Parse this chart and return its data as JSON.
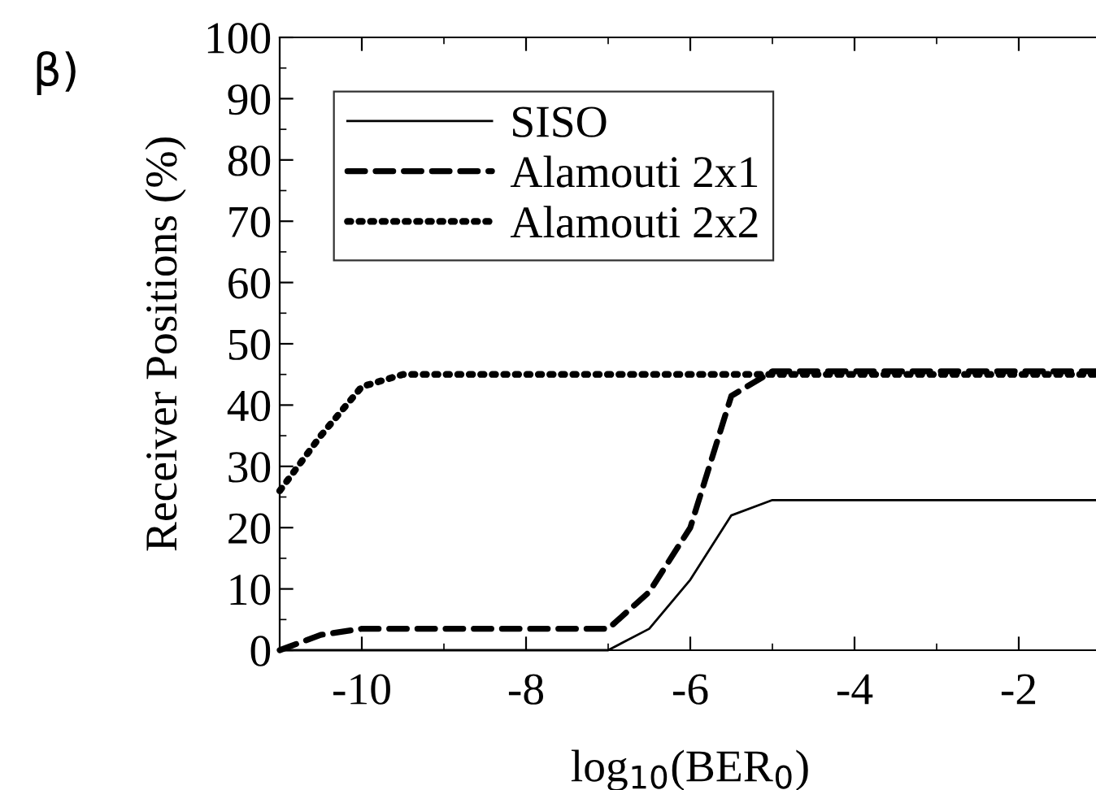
{
  "chart_data": {
    "type": "line",
    "xlabel": "log$_{10}$(BER$_{0}$)",
    "ylabel": "Receiver Positions (%)",
    "annotations": [
      "β)"
    ],
    "xlim": [
      -11,
      -1
    ],
    "xticks": [
      -10,
      -8,
      -6,
      -4,
      -2
    ],
    "ylim": [
      0,
      100
    ],
    "yticks": [
      0,
      10,
      20,
      30,
      40,
      50,
      60,
      70,
      80,
      90,
      100
    ],
    "grid": false,
    "legend": "top left",
    "series": [
      {
        "name": "SISO",
        "color": "#000000",
        "line_style": "solid",
        "x": [
          -11,
          -7,
          -6.5,
          -6,
          -5.5,
          -5,
          -1
        ],
        "values": [
          0,
          0,
          3.5,
          11.5,
          22,
          24.5,
          24.5
        ]
      },
      {
        "name": "Alamouti 2x1",
        "color": "#000000",
        "line_style": "dashed",
        "x": [
          -11,
          -10.5,
          -10,
          -7,
          -6.5,
          -6,
          -5.5,
          -5,
          -1
        ],
        "values": [
          0,
          2.5,
          3.5,
          3.5,
          9.5,
          20,
          41.5,
          45.5,
          45.5
        ]
      },
      {
        "name": "Alamouti 2x2",
        "color": "#000000",
        "line_style": "dotted",
        "x": [
          -11,
          -10.5,
          -10,
          -9.5,
          -1
        ],
        "values": [
          26,
          35,
          43,
          45,
          45
        ]
      }
    ]
  }
}
